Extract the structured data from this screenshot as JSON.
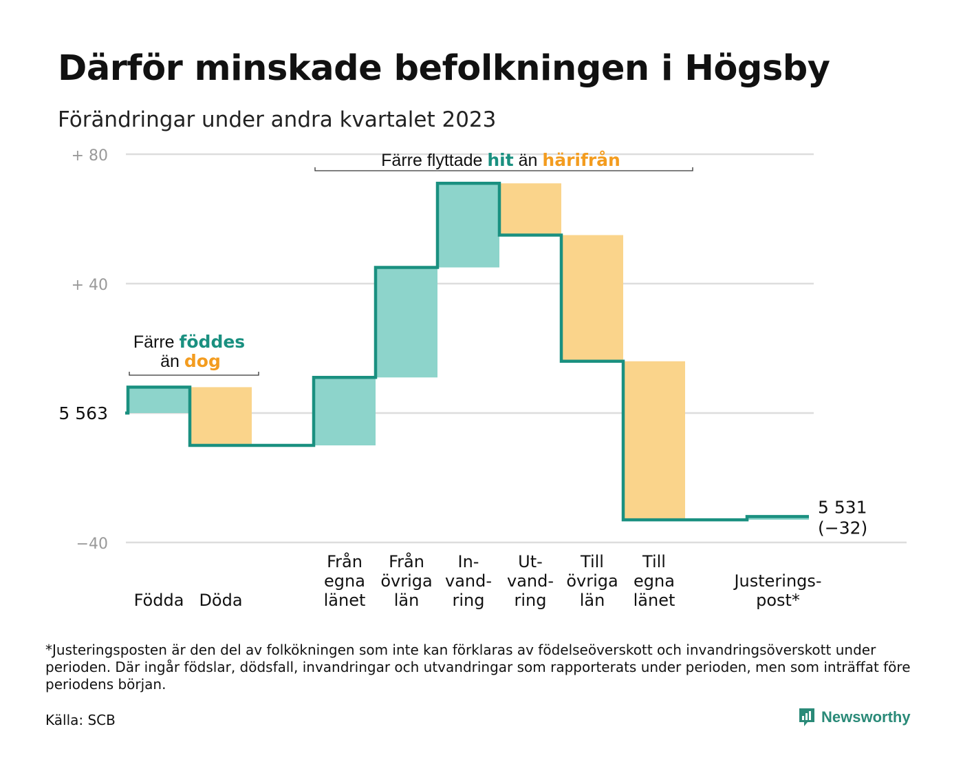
{
  "title": "Därför minskade befolkningen i Högsby",
  "subtitle": "Förändringar under andra kvartalet 2023",
  "footnote": "*Justeringsposten är den del av folkökningen som inte kan förklaras av födelseöverskott och invandringsöverskott under perioden. Där ingår födslar, dödsfall, invandringar och utvandringar som rapporterats under perioden, men som inträffat före periodens början.",
  "source": "Källa: SCB",
  "brand": "Newsworthy",
  "colors": {
    "increase": "#8dd4cb",
    "decrease": "#fad48b",
    "line": "#1a9080",
    "accent_teal": "#1a9080",
    "accent_orange": "#f39c1f"
  },
  "chart_data": {
    "type": "waterfall",
    "start_value": 5563,
    "end_value": 5531,
    "end_change": "(−32)",
    "yticks": [
      {
        "value": 80,
        "label": "+  80"
      },
      {
        "value": 40,
        "label": "+  40"
      },
      {
        "value": 0,
        "label": "5  563"
      },
      {
        "value": -40,
        "label": "−40"
      }
    ],
    "ylim": [
      -40,
      80
    ],
    "steps": [
      {
        "lines": [
          "Födda"
        ],
        "change": 8
      },
      {
        "lines": [
          "Döda"
        ],
        "change": -18
      },
      {
        "lines": [],
        "change": 0
      },
      {
        "lines": [
          "Från",
          "egna",
          "länet"
        ],
        "change": 21
      },
      {
        "lines": [
          "Från",
          "övriga",
          "län"
        ],
        "change": 34
      },
      {
        "lines": [
          "In-",
          "vand-",
          "ring"
        ],
        "change": 26
      },
      {
        "lines": [
          "Ut-",
          "vand-",
          "ring"
        ],
        "change": -16
      },
      {
        "lines": [
          "Till",
          "övriga",
          "län"
        ],
        "change": -39
      },
      {
        "lines": [
          "Till",
          "egna",
          "länet"
        ],
        "change": -49
      },
      {
        "lines": [],
        "change": 0
      },
      {
        "lines": [
          "Justerings-",
          "post*"
        ],
        "change": 1
      }
    ],
    "annotations": [
      {
        "parts": [
          [
            "Färre ",
            "plain"
          ],
          [
            "föddes",
            "teal"
          ]
        ],
        "line2": [
          [
            "än ",
            "plain"
          ],
          [
            "dog",
            "orange"
          ]
        ]
      },
      {
        "parts": [
          [
            "Färre flyttade ",
            "plain"
          ],
          [
            "hit",
            "teal"
          ],
          [
            " än ",
            "plain"
          ],
          [
            "härifrån",
            "orange"
          ]
        ]
      }
    ],
    "grid": true
  }
}
